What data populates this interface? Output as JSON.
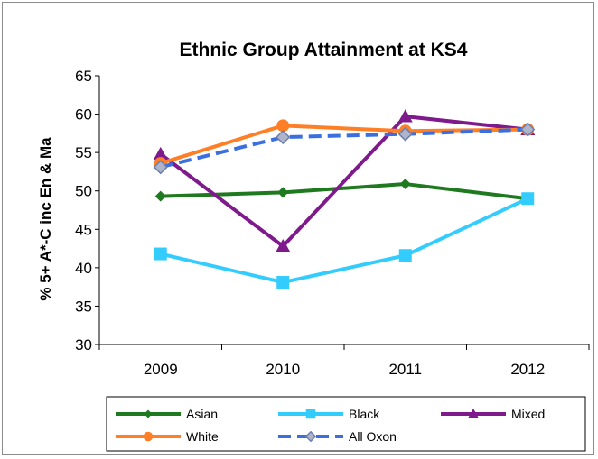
{
  "chart_data": {
    "type": "line",
    "title": "Ethnic Group Attainment at KS4",
    "xlabel": "",
    "ylabel": "% 5+ A*-C inc En & Ma",
    "categories": [
      "2009",
      "2010",
      "2011",
      "2012"
    ],
    "ylim": [
      30,
      65
    ],
    "yticks": [
      30,
      35,
      40,
      45,
      50,
      55,
      60,
      65
    ],
    "grid": false,
    "legend_position": "bottom",
    "series": [
      {
        "name": "Asian",
        "color": "#1f7a1f",
        "marker": "diamond",
        "dash": "solid",
        "values": [
          49.3,
          49.8,
          50.9,
          49.0
        ]
      },
      {
        "name": "Black",
        "color": "#33ccff",
        "marker": "square",
        "dash": "solid",
        "values": [
          41.8,
          38.1,
          41.6,
          49.0
        ]
      },
      {
        "name": "Mixed",
        "color": "#7f1a8c",
        "marker": "triangle",
        "dash": "solid",
        "values": [
          54.8,
          42.8,
          59.7,
          58.0
        ]
      },
      {
        "name": "White",
        "color": "#ff7f27",
        "marker": "circle",
        "dash": "solid",
        "values": [
          53.6,
          58.5,
          57.8,
          58.0
        ]
      },
      {
        "name": "All Oxon",
        "color": "#3b6fe0",
        "marker": "diamond-grey",
        "dash": "dashed",
        "values": [
          53.1,
          57.0,
          57.4,
          58.0
        ]
      }
    ]
  }
}
